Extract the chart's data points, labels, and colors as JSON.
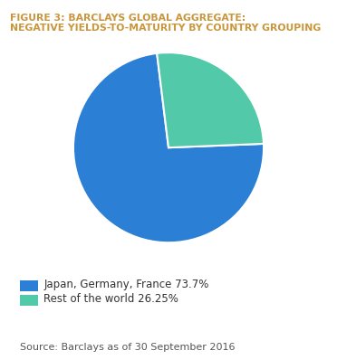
{
  "title_line1": "FIGURE 3: BARCLAYS GLOBAL AGGREGATE:",
  "title_line2": "NEGATIVE YIELDS-TO-MATURITY BY COUNTRY GROUPING",
  "slices": [
    73.7,
    26.3
  ],
  "labels": [
    "Japan, Germany, France 73.7%",
    "Rest of the world 26.25%"
  ],
  "colors": [
    "#2B7FD4",
    "#52C9A8"
  ],
  "startangle": 97,
  "source_text": "Source: Barclays as of 30 September 2016",
  "title_color": "#C8963C",
  "legend_fontsize": 8.5,
  "source_fontsize": 8.0,
  "background_color": "#FFFFFF",
  "wedge_edge_color": "#FFFFFF",
  "wedge_linewidth": 1.5
}
